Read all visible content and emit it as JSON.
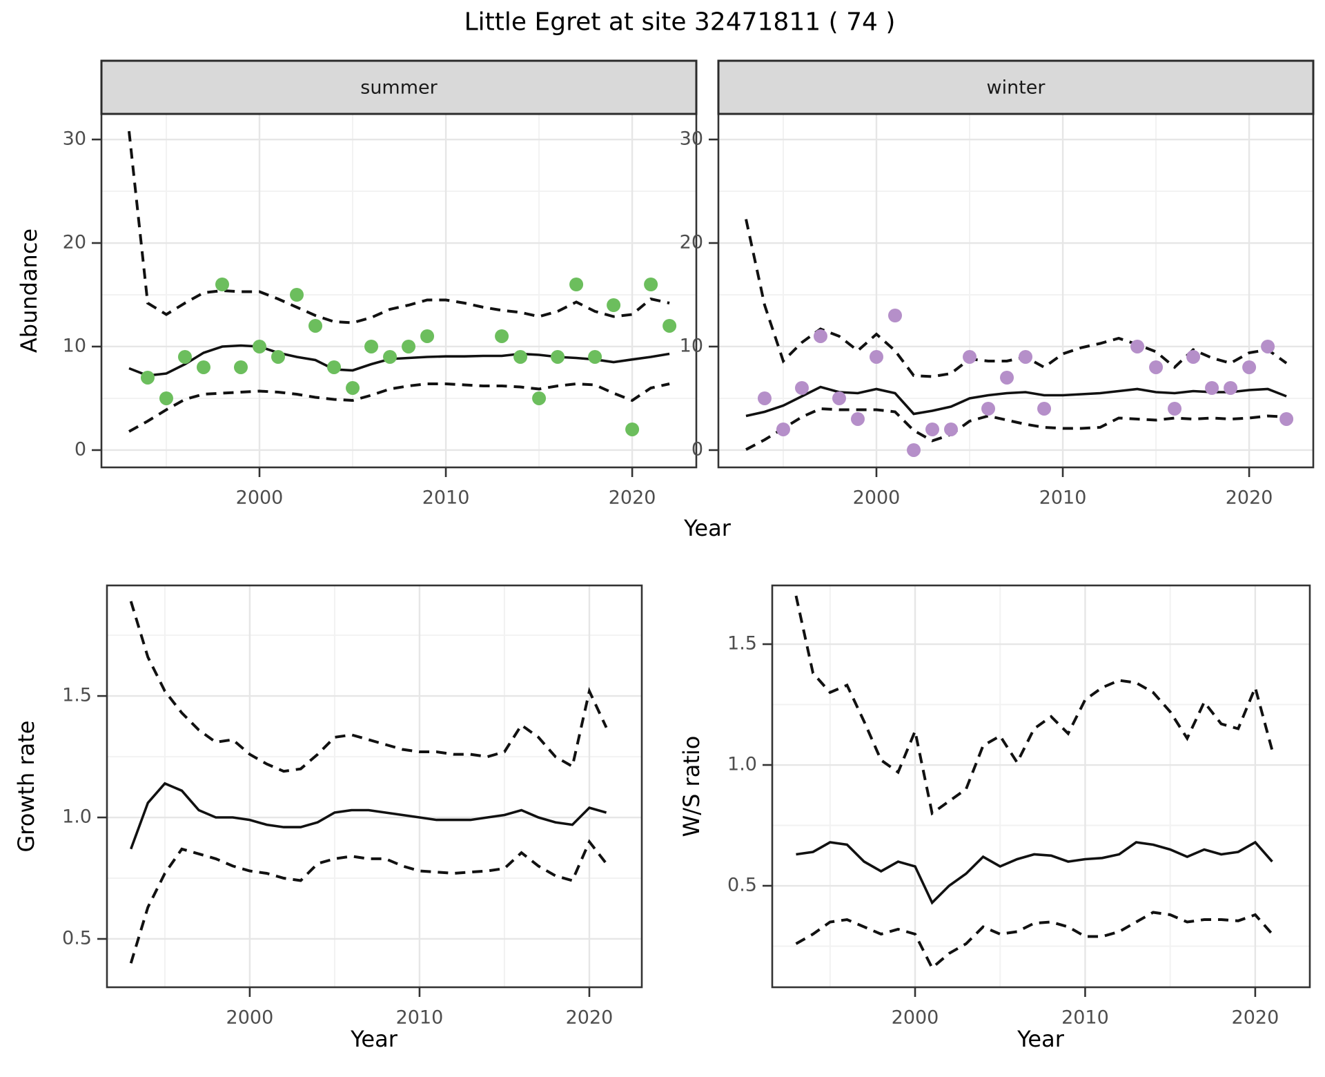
{
  "title": "Little Egret at site 32471811 ( 74 )",
  "labels": {
    "year": "Year",
    "abundance": "Abundance",
    "growth_rate": "Growth rate",
    "ws_ratio": "W/S ratio"
  },
  "colors": {
    "summer_point": "#6CBE5D",
    "winter_point": "#B58FC9",
    "line": "#111111",
    "grid_major": "#E6E6E6",
    "grid_minor": "#F2F2F2",
    "panel_border": "#333333",
    "strip_bg": "#D9D9D9",
    "strip_border": "#2B2B2B",
    "tick_text": "#4D4D4D"
  },
  "chart_data": [
    {
      "key": "abundance_summer",
      "type": "line",
      "facet": "summer",
      "ylabel": "Abundance",
      "xlabel": "Year",
      "xlim": [
        1991.52,
        2023.44
      ],
      "ylim": [
        -1.67,
        32.47
      ],
      "x_ticks_major": [
        2000,
        2010,
        2020
      ],
      "x_tick_labels": [
        "2000",
        "2010",
        "2020"
      ],
      "x_ticks_minor": [
        1995,
        2005,
        2015
      ],
      "y_ticks_major": [
        0,
        10,
        20,
        30
      ],
      "y_tick_labels": [
        "0",
        "10",
        "20",
        "30"
      ],
      "y_ticks_minor": [
        5,
        15,
        25
      ],
      "point_color": "#6CBE5D",
      "line_years": [
        1993,
        1994,
        1995,
        1996,
        1997,
        1998,
        1999,
        2000,
        2001,
        2002,
        2003,
        2004,
        2005,
        2006,
        2007,
        2008,
        2009,
        2010,
        2011,
        2012,
        2013,
        2014,
        2015,
        2016,
        2017,
        2018,
        2019,
        2020,
        2021,
        2022
      ],
      "mean": [
        7.9,
        7.2,
        7.4,
        8.3,
        9.4,
        10.0,
        10.1,
        10.0,
        9.4,
        9.0,
        8.7,
        7.8,
        7.7,
        8.3,
        8.8,
        8.9,
        9.0,
        9.05,
        9.05,
        9.1,
        9.1,
        9.3,
        9.2,
        9.0,
        8.9,
        8.75,
        8.5,
        8.75,
        9.0,
        9.3
      ],
      "ci_upper": [
        30.8,
        14.2,
        13.1,
        14.2,
        15.2,
        15.4,
        15.3,
        15.3,
        14.6,
        13.8,
        13.0,
        12.4,
        12.3,
        12.8,
        13.6,
        14.0,
        14.5,
        14.5,
        14.2,
        13.8,
        13.5,
        13.3,
        12.9,
        13.4,
        14.3,
        13.4,
        12.9,
        13.1,
        14.6,
        14.2
      ],
      "ci_lower": [
        1.8,
        2.8,
        3.9,
        4.9,
        5.4,
        5.5,
        5.6,
        5.7,
        5.6,
        5.4,
        5.1,
        4.9,
        4.8,
        5.3,
        5.9,
        6.2,
        6.4,
        6.4,
        6.3,
        6.2,
        6.2,
        6.1,
        5.9,
        6.2,
        6.4,
        6.3,
        5.5,
        4.8,
        6.0,
        6.4
      ],
      "points": {
        "years": [
          1994,
          1995,
          1996,
          1997,
          1998,
          1999,
          2000,
          2001,
          2002,
          2003,
          2004,
          2005,
          2006,
          2007,
          2008,
          2009,
          2013,
          2014,
          2015,
          2016,
          2017,
          2018,
          2019,
          2020,
          2021,
          2022
        ],
        "values": [
          7,
          5,
          9,
          8,
          16,
          8,
          10,
          9,
          15,
          12,
          8,
          6,
          10,
          9,
          10,
          11,
          11,
          9,
          5,
          9,
          16,
          9,
          14,
          2,
          16,
          12
        ]
      }
    },
    {
      "key": "abundance_winter",
      "type": "line",
      "facet": "winter",
      "ylabel": "Abundance",
      "xlabel": "Year",
      "xlim": [
        1991.52,
        2023.44
      ],
      "ylim": [
        -1.67,
        32.47
      ],
      "x_ticks_major": [
        2000,
        2010,
        2020
      ],
      "x_tick_labels": [
        "2000",
        "2010",
        "2020"
      ],
      "x_ticks_minor": [
        1995,
        2005,
        2015
      ],
      "y_ticks_major": [
        0,
        10,
        20,
        30
      ],
      "y_tick_labels": [
        "0",
        "10",
        "20",
        "30"
      ],
      "y_ticks_minor": [
        5,
        15,
        25
      ],
      "point_color": "#B58FC9",
      "line_years": [
        1993,
        1994,
        1995,
        1996,
        1997,
        1998,
        1999,
        2000,
        2001,
        2002,
        2003,
        2004,
        2005,
        2006,
        2007,
        2008,
        2009,
        2010,
        2011,
        2012,
        2013,
        2014,
        2015,
        2016,
        2017,
        2018,
        2019,
        2020,
        2021,
        2022
      ],
      "mean": [
        3.3,
        3.7,
        4.3,
        5.2,
        6.1,
        5.6,
        5.5,
        5.9,
        5.5,
        3.5,
        3.8,
        4.2,
        5.0,
        5.3,
        5.5,
        5.6,
        5.3,
        5.3,
        5.4,
        5.5,
        5.7,
        5.9,
        5.6,
        5.5,
        5.7,
        5.6,
        5.6,
        5.8,
        5.9,
        5.2
      ],
      "ci_upper": [
        22.3,
        14.0,
        8.6,
        10.4,
        11.7,
        11.0,
        9.6,
        11.2,
        9.6,
        7.2,
        7.1,
        7.4,
        8.8,
        8.6,
        8.6,
        9.0,
        8.0,
        9.3,
        9.9,
        10.3,
        10.8,
        10.2,
        9.5,
        8.0,
        9.7,
        8.9,
        8.4,
        9.4,
        9.7,
        8.4
      ],
      "ci_lower": [
        0.05,
        1.0,
        2.1,
        3.2,
        4.0,
        3.9,
        3.9,
        3.9,
        3.7,
        1.9,
        0.9,
        1.5,
        2.8,
        3.3,
        2.9,
        2.5,
        2.2,
        2.1,
        2.1,
        2.2,
        3.1,
        3.0,
        2.9,
        3.1,
        3.0,
        3.1,
        3.0,
        3.1,
        3.3,
        3.2
      ],
      "points": {
        "years": [
          1994,
          1995,
          1996,
          1997,
          1998,
          1999,
          2000,
          2001,
          2002,
          2003,
          2004,
          2005,
          2006,
          2007,
          2008,
          2009,
          2014,
          2015,
          2016,
          2017,
          2018,
          2019,
          2020,
          2021,
          2022
        ],
        "values": [
          5,
          2,
          6,
          11,
          5,
          3,
          9,
          13,
          0,
          2,
          2,
          9,
          4,
          7,
          9,
          4,
          10,
          8,
          4,
          9,
          6,
          6,
          8,
          10,
          3
        ]
      }
    },
    {
      "key": "growth",
      "type": "line",
      "facet": null,
      "ylabel": "Growth rate",
      "xlabel": "Year",
      "xlim": [
        1991.59,
        2023.09
      ],
      "ylim": [
        0.301,
        1.955
      ],
      "x_ticks_major": [
        2000,
        2010,
        2020
      ],
      "x_tick_labels": [
        "2000",
        "2010",
        "2020"
      ],
      "x_ticks_minor": [
        1995,
        2005,
        2015
      ],
      "y_ticks_major": [
        0.5,
        1.0,
        1.5
      ],
      "y_tick_labels": [
        "0.5",
        "1.0",
        "1.5"
      ],
      "y_ticks_minor": [
        0.75,
        1.25,
        1.75
      ],
      "point_color": null,
      "line_years": [
        1993,
        1994,
        1995,
        1996,
        1997,
        1998,
        1999,
        2000,
        2001,
        2002,
        2003,
        2004,
        2005,
        2006,
        2007,
        2008,
        2009,
        2010,
        2011,
        2012,
        2013,
        2014,
        2015,
        2016,
        2017,
        2018,
        2019,
        2020,
        2021
      ],
      "mean": [
        0.87,
        1.06,
        1.14,
        1.11,
        1.03,
        1.0,
        1.0,
        0.99,
        0.97,
        0.96,
        0.96,
        0.98,
        1.02,
        1.03,
        1.03,
        1.02,
        1.01,
        1.0,
        0.99,
        0.99,
        0.99,
        1.0,
        1.01,
        1.03,
        1.0,
        0.98,
        0.97,
        1.04,
        1.02
      ],
      "ci_upper": [
        1.89,
        1.66,
        1.52,
        1.43,
        1.36,
        1.31,
        1.32,
        1.26,
        1.22,
        1.19,
        1.2,
        1.26,
        1.33,
        1.34,
        1.32,
        1.3,
        1.28,
        1.27,
        1.27,
        1.26,
        1.26,
        1.25,
        1.27,
        1.38,
        1.33,
        1.25,
        1.21,
        1.52,
        1.37
      ],
      "ci_lower": [
        0.4,
        0.63,
        0.77,
        0.87,
        0.85,
        0.83,
        0.8,
        0.78,
        0.77,
        0.75,
        0.74,
        0.81,
        0.83,
        0.84,
        0.83,
        0.83,
        0.8,
        0.78,
        0.775,
        0.77,
        0.775,
        0.78,
        0.79,
        0.855,
        0.8,
        0.76,
        0.74,
        0.9,
        0.81
      ],
      "points": {
        "years": [],
        "values": []
      }
    },
    {
      "key": "ws",
      "type": "line",
      "facet": null,
      "ylabel": "W/S ratio",
      "xlabel": "Year",
      "xlim": [
        1991.6,
        2023.21
      ],
      "ylim": [
        0.08,
        1.743
      ],
      "x_ticks_major": [
        2000,
        2010,
        2020
      ],
      "x_tick_labels": [
        "2000",
        "2010",
        "2020"
      ],
      "x_ticks_minor": [
        1995,
        2005,
        2015
      ],
      "y_ticks_major": [
        0.5,
        1.0,
        1.5
      ],
      "y_tick_labels": [
        "0.5",
        "1.0",
        "1.5"
      ],
      "y_ticks_minor": [
        0.25,
        0.75,
        1.25
      ],
      "point_color": null,
      "line_years": [
        1993,
        1994,
        1995,
        1996,
        1997,
        1998,
        1999,
        2000,
        2001,
        2002,
        2003,
        2004,
        2005,
        2006,
        2007,
        2008,
        2009,
        2010,
        2011,
        2012,
        2013,
        2014,
        2015,
        2016,
        2017,
        2018,
        2019,
        2020,
        2021
      ],
      "mean": [
        0.63,
        0.64,
        0.68,
        0.67,
        0.6,
        0.56,
        0.6,
        0.58,
        0.43,
        0.5,
        0.55,
        0.62,
        0.58,
        0.61,
        0.63,
        0.625,
        0.6,
        0.61,
        0.615,
        0.63,
        0.68,
        0.67,
        0.65,
        0.62,
        0.65,
        0.63,
        0.64,
        0.68,
        0.6
      ],
      "ci_upper": [
        1.7,
        1.38,
        1.3,
        1.33,
        1.18,
        1.02,
        0.97,
        1.14,
        0.8,
        0.85,
        0.9,
        1.08,
        1.12,
        1.01,
        1.15,
        1.2,
        1.13,
        1.27,
        1.32,
        1.35,
        1.34,
        1.3,
        1.22,
        1.11,
        1.26,
        1.17,
        1.15,
        1.32,
        1.06
      ],
      "ci_lower": [
        0.26,
        0.3,
        0.35,
        0.36,
        0.33,
        0.3,
        0.32,
        0.3,
        0.16,
        0.22,
        0.26,
        0.33,
        0.3,
        0.31,
        0.345,
        0.35,
        0.33,
        0.29,
        0.29,
        0.31,
        0.35,
        0.39,
        0.38,
        0.35,
        0.36,
        0.36,
        0.355,
        0.38,
        0.3
      ]
    }
  ]
}
